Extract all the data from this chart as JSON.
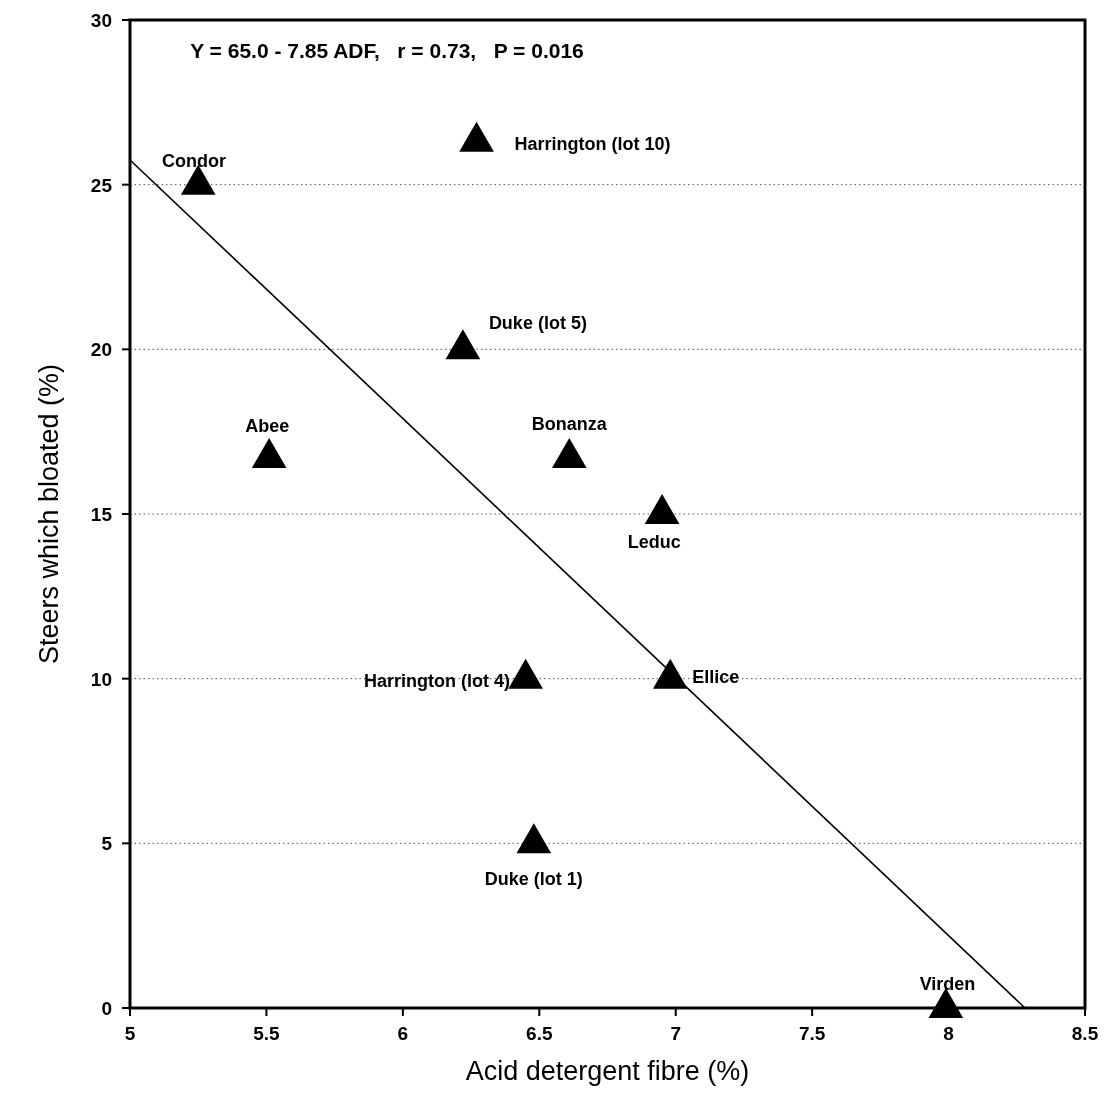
{
  "chart_data": {
    "type": "scatter",
    "xlabel": "Acid detergent fibre (%)",
    "ylabel": "Steers which bloated (%)",
    "xlim": [
      5,
      8.5
    ],
    "xticks": [
      5,
      5.5,
      6,
      6.5,
      7,
      7.5,
      8,
      8.5
    ],
    "ylim": [
      0,
      30
    ],
    "yticks": [
      0,
      5,
      10,
      15,
      20,
      25,
      30
    ],
    "grid": "y",
    "marker": "triangle",
    "series": [
      {
        "color": "#000000",
        "x": [
          5.25,
          6.27,
          6.22,
          5.51,
          6.61,
          6.95,
          6.45,
          6.98,
          6.48,
          7.99
        ],
        "values": [
          25,
          26.3,
          20,
          16.7,
          16.7,
          15,
          10,
          10,
          5,
          0
        ]
      },
      {
        "type": "line",
        "color": "#000000",
        "x": [
          5,
          8.28
        ],
        "values": [
          25.75,
          0
        ],
        "marker": "none"
      }
    ],
    "annotations": [
      "Y = 65.0 - 7.85 ADF,   r = 0.73,   P = 0.016",
      "Condor",
      "Leduc",
      "Harrington (lot 4)",
      "Virden",
      {
        "text": "Harrington (lot 10)",
        "x": 6.27,
        "y": 26.3
      },
      {
        "text": "Duke (lot 5)",
        "x": 6.22,
        "y": 20
      },
      {
        "text": "Abee",
        "x": 5.51,
        "y": 16.7
      },
      {
        "text": "Bonanza",
        "x": 6.61,
        "y": 16.7
      },
      {
        "text": "Ellice",
        "x": 6.98,
        "y": 10
      },
      {
        "text": "Duke (lot 1)",
        "x": 6.48,
        "y": 5
      }
    ]
  }
}
